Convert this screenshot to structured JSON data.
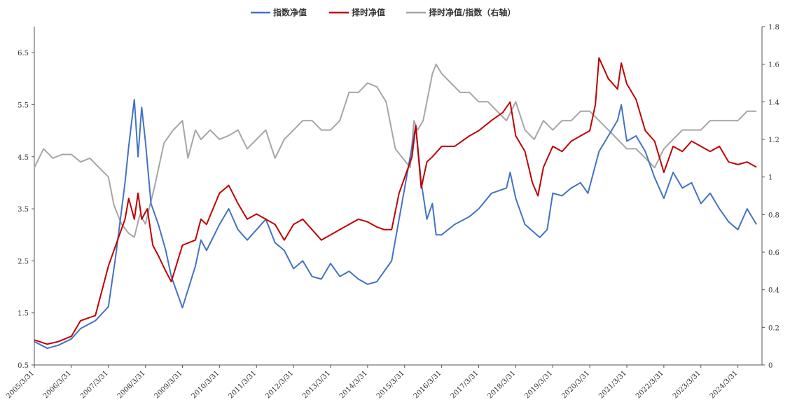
{
  "chart_data": {
    "type": "line",
    "legend_position": "top-center",
    "grid": false,
    "series": [
      {
        "name": "指数净值",
        "axis": "left",
        "color": "#4472C4",
        "x": [
          2005.25,
          2005.6,
          2005.9,
          2006.25,
          2006.5,
          2006.9,
          2007.25,
          2007.45,
          2007.7,
          2007.8,
          2007.95,
          2008.05,
          2008.15,
          2008.25,
          2008.4,
          2008.6,
          2008.8,
          2008.95,
          2009.25,
          2009.6,
          2009.75,
          2009.9,
          2010.25,
          2010.5,
          2010.75,
          2011.0,
          2011.25,
          2011.5,
          2011.75,
          2012.0,
          2012.25,
          2012.5,
          2012.75,
          2013.0,
          2013.25,
          2013.5,
          2013.75,
          2014.0,
          2014.25,
          2014.5,
          2014.7,
          2014.9,
          2015.1,
          2015.25,
          2015.45,
          2015.55,
          2015.7,
          2015.85,
          2016.0,
          2016.1,
          2016.25,
          2016.6,
          2017.0,
          2017.25,
          2017.6,
          2018.0,
          2018.1,
          2018.25,
          2018.5,
          2018.9,
          2019.1,
          2019.25,
          2019.5,
          2019.75,
          2020.0,
          2020.2,
          2020.5,
          2020.75,
          2021.0,
          2021.1,
          2021.25,
          2021.5,
          2021.75,
          2022.0,
          2022.25,
          2022.5,
          2022.75,
          2023.0,
          2023.25,
          2023.5,
          2023.75,
          2024.0,
          2024.25,
          2024.5,
          2024.75
        ],
        "values": [
          0.95,
          0.82,
          0.88,
          1.0,
          1.2,
          1.35,
          1.62,
          2.6,
          4.0,
          4.7,
          5.6,
          4.5,
          5.45,
          4.8,
          3.6,
          3.2,
          2.7,
          2.2,
          1.6,
          2.4,
          2.9,
          2.7,
          3.2,
          3.5,
          3.1,
          2.9,
          3.1,
          3.3,
          2.85,
          2.7,
          2.35,
          2.5,
          2.2,
          2.15,
          2.45,
          2.2,
          2.3,
          2.15,
          2.05,
          2.1,
          2.3,
          2.5,
          3.3,
          3.9,
          4.7,
          5.1,
          4.0,
          3.3,
          3.6,
          3.0,
          3.0,
          3.2,
          3.35,
          3.5,
          3.8,
          3.9,
          4.2,
          3.7,
          3.2,
          2.95,
          3.1,
          3.8,
          3.75,
          3.9,
          4.0,
          3.8,
          4.6,
          4.9,
          5.2,
          5.5,
          4.8,
          4.9,
          4.6,
          4.1,
          3.7,
          4.2,
          3.9,
          4.0,
          3.6,
          3.8,
          3.5,
          3.25,
          3.1,
          3.5,
          3.2
        ]
      },
      {
        "name": "择时净值",
        "axis": "left",
        "color": "#C00000",
        "x": [
          2005.25,
          2005.6,
          2005.9,
          2006.25,
          2006.5,
          2006.9,
          2007.25,
          2007.45,
          2007.7,
          2007.8,
          2007.95,
          2008.05,
          2008.15,
          2008.3,
          2008.45,
          2008.6,
          2008.8,
          2008.95,
          2009.25,
          2009.6,
          2009.75,
          2009.9,
          2010.25,
          2010.5,
          2010.75,
          2011.0,
          2011.25,
          2011.5,
          2011.75,
          2012.0,
          2012.25,
          2012.5,
          2012.75,
          2013.0,
          2013.25,
          2013.5,
          2013.75,
          2014.0,
          2014.25,
          2014.5,
          2014.7,
          2014.9,
          2015.1,
          2015.25,
          2015.45,
          2015.55,
          2015.7,
          2015.85,
          2016.0,
          2016.25,
          2016.6,
          2017.0,
          2017.25,
          2017.6,
          2017.9,
          2018.1,
          2018.25,
          2018.5,
          2018.7,
          2018.85,
          2019.0,
          2019.25,
          2019.5,
          2019.75,
          2020.0,
          2020.25,
          2020.4,
          2020.5,
          2020.75,
          2021.0,
          2021.1,
          2021.25,
          2021.5,
          2021.75,
          2022.0,
          2022.25,
          2022.5,
          2022.75,
          2023.0,
          2023.25,
          2023.5,
          2023.75,
          2024.0,
          2024.25,
          2024.5,
          2024.75
        ],
        "values": [
          0.98,
          0.9,
          0.95,
          1.05,
          1.35,
          1.45,
          2.4,
          2.8,
          3.3,
          3.7,
          3.3,
          3.8,
          3.3,
          3.5,
          2.8,
          2.6,
          2.3,
          2.1,
          2.8,
          2.9,
          3.3,
          3.2,
          3.8,
          3.95,
          3.6,
          3.3,
          3.4,
          3.3,
          3.2,
          2.9,
          3.2,
          3.3,
          3.1,
          2.9,
          3.0,
          3.1,
          3.2,
          3.3,
          3.25,
          3.15,
          3.1,
          3.1,
          3.8,
          4.1,
          4.5,
          5.1,
          3.9,
          4.4,
          4.5,
          4.7,
          4.7,
          4.9,
          5.0,
          5.2,
          5.35,
          5.55,
          4.9,
          4.6,
          4.0,
          3.75,
          4.3,
          4.7,
          4.6,
          4.8,
          4.9,
          5.0,
          5.5,
          6.4,
          6.0,
          5.8,
          6.3,
          5.9,
          5.6,
          5.0,
          4.8,
          4.2,
          4.7,
          4.6,
          4.8,
          4.7,
          4.6,
          4.7,
          4.4,
          4.35,
          4.4,
          4.3
        ]
      },
      {
        "name": "择时净值/指数（右轴）",
        "axis": "right",
        "color": "#A6A6A6",
        "x": [
          2005.25,
          2005.5,
          2005.75,
          2006.0,
          2006.25,
          2006.5,
          2006.75,
          2007.0,
          2007.25,
          2007.4,
          2007.6,
          2007.8,
          2007.95,
          2008.1,
          2008.25,
          2008.5,
          2008.75,
          2009.0,
          2009.25,
          2009.4,
          2009.6,
          2009.75,
          2010.0,
          2010.25,
          2010.5,
          2010.75,
          2011.0,
          2011.25,
          2011.5,
          2011.75,
          2012.0,
          2012.25,
          2012.5,
          2012.75,
          2013.0,
          2013.25,
          2013.5,
          2013.75,
          2014.0,
          2014.25,
          2014.5,
          2014.75,
          2015.0,
          2015.2,
          2015.4,
          2015.5,
          2015.6,
          2015.75,
          2016.0,
          2016.1,
          2016.25,
          2016.5,
          2016.75,
          2017.0,
          2017.25,
          2017.5,
          2017.75,
          2018.0,
          2018.25,
          2018.5,
          2018.75,
          2019.0,
          2019.25,
          2019.5,
          2019.75,
          2020.0,
          2020.25,
          2020.5,
          2020.75,
          2021.0,
          2021.25,
          2021.5,
          2021.75,
          2022.0,
          2022.25,
          2022.5,
          2022.75,
          2023.0,
          2023.25,
          2023.5,
          2023.75,
          2024.0,
          2024.25,
          2024.5,
          2024.75
        ],
        "values": [
          1.05,
          1.15,
          1.1,
          1.12,
          1.12,
          1.08,
          1.1,
          1.05,
          1.0,
          0.85,
          0.75,
          0.7,
          0.68,
          0.8,
          0.75,
          0.95,
          1.18,
          1.25,
          1.3,
          1.1,
          1.25,
          1.2,
          1.25,
          1.2,
          1.22,
          1.25,
          1.15,
          1.2,
          1.25,
          1.1,
          1.2,
          1.25,
          1.3,
          1.3,
          1.25,
          1.25,
          1.3,
          1.45,
          1.45,
          1.5,
          1.48,
          1.4,
          1.15,
          1.1,
          1.05,
          1.3,
          1.25,
          1.3,
          1.55,
          1.6,
          1.55,
          1.5,
          1.45,
          1.45,
          1.4,
          1.4,
          1.35,
          1.3,
          1.4,
          1.25,
          1.2,
          1.3,
          1.25,
          1.3,
          1.3,
          1.35,
          1.35,
          1.3,
          1.25,
          1.2,
          1.15,
          1.15,
          1.1,
          1.05,
          1.15,
          1.2,
          1.25,
          1.25,
          1.25,
          1.3,
          1.3,
          1.3,
          1.3,
          1.35,
          1.35
        ]
      }
    ],
    "y_left": {
      "min": 0.5,
      "max": 7.0,
      "ticks": [
        0.5,
        1.5,
        2.5,
        3.5,
        4.5,
        5.5,
        6.5
      ],
      "tick_labels": [
        "0.5",
        "1.5",
        "2.5",
        "3.5",
        "4.5",
        "5.5",
        "6.5"
      ]
    },
    "y_right": {
      "min": 0,
      "max": 1.8,
      "ticks": [
        0,
        0.2,
        0.4,
        0.6,
        0.8,
        1,
        1.2,
        1.4,
        1.6,
        1.8
      ],
      "tick_labels": [
        "0",
        "0.2",
        "0.4",
        "0.6",
        "0.8",
        "1",
        "1.2",
        "1.4",
        "1.6",
        "1.8"
      ]
    },
    "x_axis": {
      "min": 2005.25,
      "max": 2024.9,
      "ticks": [
        2005.25,
        2006.25,
        2007.25,
        2008.25,
        2009.25,
        2010.25,
        2011.25,
        2012.25,
        2013.25,
        2014.25,
        2015.25,
        2016.25,
        2017.25,
        2018.25,
        2019.25,
        2020.25,
        2021.25,
        2022.25,
        2023.25,
        2024.25
      ],
      "tick_labels": [
        "2005/3/31",
        "2006/3/31",
        "2007/3/31",
        "2008/3/31",
        "2009/3/31",
        "2010/3/31",
        "2011/3/31",
        "2012/3/31",
        "2013/3/31",
        "2014/3/31",
        "2015/3/31",
        "2016/3/31",
        "2017/3/31",
        "2018/3/31",
        "2019/3/31",
        "2020/3/31",
        "2021/3/31",
        "2022/3/31",
        "2023/3/31",
        "2024/3/31"
      ]
    }
  }
}
